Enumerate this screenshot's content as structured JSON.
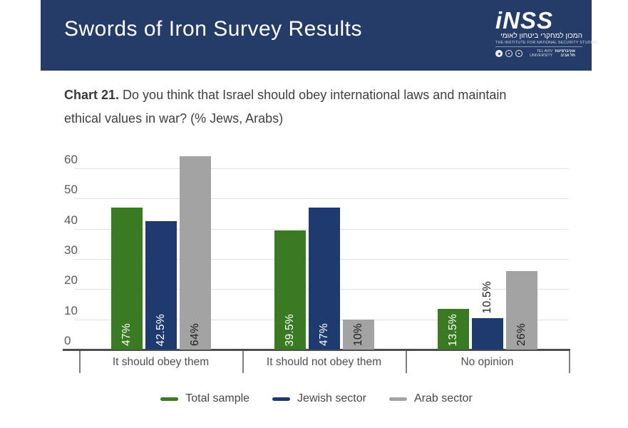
{
  "header": {
    "title": "Swords of Iron Survey Results",
    "bg_color": "#253c68",
    "logo": {
      "wordmark": "iNSS",
      "hebrew_name": "המכון למחקרי ביטחון לאומי",
      "english_name": "THE INSTITUTE FOR NATIONAL SECURITY STUDIES",
      "tau_english_line1": "TEL AVIV",
      "tau_english_line2": "UNIVERSITY",
      "tau_hebrew_line1": "אוניברסיטת",
      "tau_hebrew_line2": "תל אביב"
    }
  },
  "chart_title": {
    "prefix": "Chart 21.",
    "question": "Do you think that Israel should obey international laws and maintain ethical values in war? (% Jews, Arabs)"
  },
  "chart_data": {
    "type": "bar",
    "title": "Chart 21. Do you think that Israel should obey international laws and maintain ethical values in war? (% Jews, Arabs)",
    "categories": [
      "It should obey them",
      "It should not obey them",
      "No opinion"
    ],
    "series": [
      {
        "name": "Total sample",
        "color": "#3a7a22",
        "label_color": "#ffffff",
        "values": [
          47,
          39.5,
          13.5
        ],
        "labels": [
          "47%",
          "39.5%",
          "13.5%"
        ]
      },
      {
        "name": "Jewish sector",
        "color": "#1e3a6e",
        "label_color": "#ffffff",
        "values": [
          42.5,
          47,
          10.5
        ],
        "labels": [
          "42.5%",
          "47%",
          "10.5%"
        ]
      },
      {
        "name": "Arab sector",
        "color": "#a3a3a3",
        "label_color": "#1d1d1d",
        "values": [
          64,
          10,
          26
        ],
        "labels": [
          "64%",
          "10%",
          "26%"
        ]
      }
    ],
    "y_ticks": [
      0,
      10,
      20,
      30,
      40,
      50,
      60
    ],
    "ylim": [
      0,
      60
    ],
    "grid": true,
    "legend_position": "bottom",
    "value_unit": "%"
  }
}
